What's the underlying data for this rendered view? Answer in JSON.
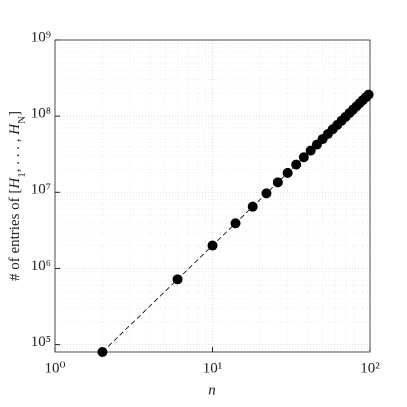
{
  "chart_data": {
    "type": "scatter",
    "xlabel": "n",
    "ylabel": [
      "# of entries of [",
      "H",
      "1",
      ", . . . , ",
      "H",
      "N",
      "]"
    ],
    "x": [
      2,
      6,
      10,
      14,
      18,
      22,
      26,
      30,
      34,
      38,
      42,
      46,
      50,
      54,
      58,
      62,
      66,
      70,
      74,
      78,
      82,
      86,
      90,
      94,
      98
    ],
    "series": [
      {
        "color": "#000000",
        "values": [
          80000,
          720000,
          2000000,
          3920000,
          6480000,
          9680000,
          13520000,
          18000000,
          23120000,
          28880000,
          35280000,
          42320000,
          50000000,
          58320000,
          67280000,
          76880000,
          87120000,
          98000000,
          109520000,
          121680000,
          134480000,
          147920000,
          162000000,
          176720000,
          192080000
        ]
      }
    ],
    "reference_line": {
      "x": [
        2,
        100
      ],
      "values": [
        80000,
        200000000
      ],
      "color": "#000000",
      "style": "dashed"
    },
    "xlim": [
      1,
      100
    ],
    "ylim": [
      80000,
      1000000000
    ],
    "xticks": [
      {
        "value": 1,
        "label": "10⁰"
      },
      {
        "value": 10,
        "label": "10¹"
      },
      {
        "value": 100,
        "label": "10²"
      }
    ],
    "yticks": [
      {
        "value": 100000,
        "label": "10⁵"
      },
      {
        "value": 1000000,
        "label": "10⁶"
      },
      {
        "value": 10000000,
        "label": "10⁷"
      },
      {
        "value": 100000000,
        "label": "10⁸"
      },
      {
        "value": 1000000000,
        "label": "10⁹"
      }
    ],
    "xscale": "log",
    "yscale": "log",
    "grid": true,
    "minor_grid": true
  }
}
